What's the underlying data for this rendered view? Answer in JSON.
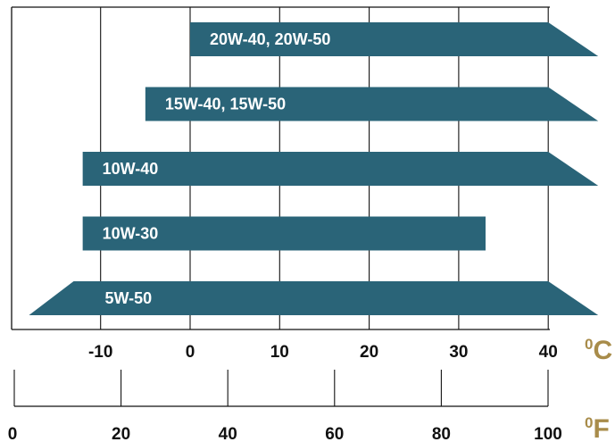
{
  "chart_data": {
    "type": "bar",
    "orientation": "horizontal",
    "grid": true,
    "bar_color": "#2a6478",
    "unit_color": "#a88c4a",
    "celsius_axis": {
      "unit_sup": "0",
      "unit": "C",
      "ticks": [
        -10,
        0,
        10,
        20,
        30,
        40
      ],
      "tick_labels": [
        "-10",
        "0",
        "10",
        "20",
        "30",
        "40"
      ]
    },
    "fahrenheit_axis": {
      "unit_sup": "0",
      "unit": "F",
      "ticks": [
        0,
        20,
        40,
        60,
        80,
        100
      ],
      "tick_labels": [
        "0",
        "20",
        "40",
        "60",
        "80",
        "100"
      ]
    },
    "series": [
      {
        "label": "20W-40, 20W-50",
        "min_c": 0,
        "max_c": 40,
        "left_end": "flat",
        "right_end": "arrow"
      },
      {
        "label": "15W-40, 15W-50",
        "min_c": -5,
        "max_c": 40,
        "left_end": "flat",
        "right_end": "arrow"
      },
      {
        "label": "10W-40",
        "min_c": -12,
        "max_c": 40,
        "left_end": "flat",
        "right_end": "arrow"
      },
      {
        "label": "10W-30",
        "min_c": -12,
        "max_c": 33,
        "left_end": "flat",
        "right_end": "flat"
      },
      {
        "label": "5W-50",
        "min_c": -18,
        "max_c": 40,
        "left_end": "arrow",
        "right_end": "arrow"
      }
    ]
  }
}
